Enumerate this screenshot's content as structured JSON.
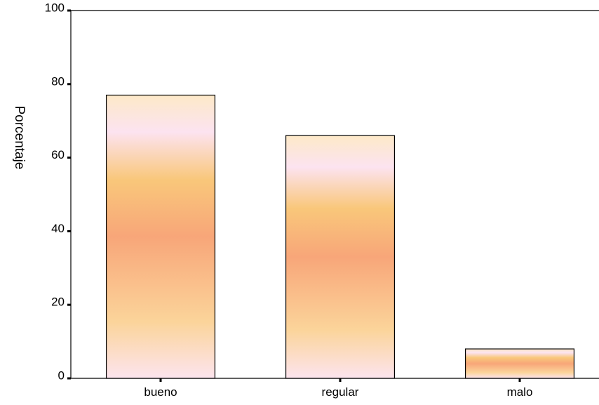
{
  "chart_data": {
    "type": "bar",
    "title": "",
    "xlabel": "",
    "ylabel": "Porcentaje",
    "categories": [
      "bueno",
      "regular",
      "malo"
    ],
    "values": [
      77,
      66,
      8
    ],
    "ylim": [
      0,
      100
    ],
    "yticks": [
      "0",
      "20",
      "40",
      "60",
      "80",
      "100"
    ],
    "grid": false,
    "legend": "none",
    "bar_edge_color": "#000000",
    "bar_gradient_colors": [
      "#fde9c8",
      "#fce3f0",
      "#f9c77a",
      "#f8a679",
      "#fbd49a",
      "#fce4ee"
    ]
  }
}
